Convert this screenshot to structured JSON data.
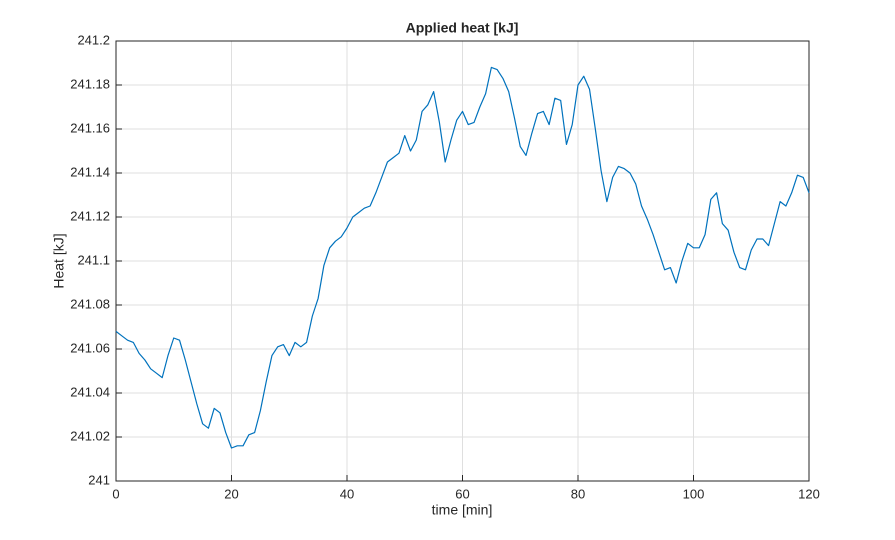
{
  "chart_data": {
    "type": "line",
    "title": "Applied heat [kJ]",
    "xlabel": "time [min]",
    "ylabel": "Heat [kJ]",
    "x": [
      0,
      1,
      2,
      3,
      4,
      5,
      6,
      7,
      8,
      9,
      10,
      11,
      12,
      13,
      14,
      15,
      16,
      17,
      18,
      19,
      20,
      21,
      22,
      23,
      24,
      25,
      26,
      27,
      28,
      29,
      30,
      31,
      32,
      33,
      34,
      35,
      36,
      37,
      38,
      39,
      40,
      41,
      42,
      43,
      44,
      45,
      46,
      47,
      48,
      49,
      50,
      51,
      52,
      53,
      54,
      55,
      56,
      57,
      58,
      59,
      60,
      61,
      62,
      63,
      64,
      65,
      66,
      67,
      68,
      69,
      70,
      71,
      72,
      73,
      74,
      75,
      76,
      77,
      78,
      79,
      80,
      81,
      82,
      83,
      84,
      85,
      86,
      87,
      88,
      89,
      90,
      91,
      92,
      93,
      94,
      95,
      96,
      97,
      98,
      99,
      100,
      101,
      102,
      103,
      104,
      105,
      106,
      107,
      108,
      109,
      110,
      111,
      112,
      113,
      114,
      115,
      116,
      117,
      118,
      119,
      120
    ],
    "values": [
      241.068,
      241.066,
      241.064,
      241.063,
      241.058,
      241.055,
      241.051,
      241.049,
      241.047,
      241.057,
      241.065,
      241.064,
      241.055,
      241.045,
      241.035,
      241.026,
      241.024,
      241.033,
      241.031,
      241.022,
      241.015,
      241.016,
      241.016,
      241.021,
      241.022,
      241.032,
      241.045,
      241.057,
      241.061,
      241.062,
      241.057,
      241.063,
      241.061,
      241.063,
      241.075,
      241.083,
      241.098,
      241.106,
      241.109,
      241.111,
      241.115,
      241.12,
      241.122,
      241.124,
      241.125,
      241.131,
      241.138,
      241.145,
      241.147,
      241.149,
      241.157,
      241.15,
      241.155,
      241.168,
      241.171,
      241.177,
      241.163,
      241.145,
      241.155,
      241.164,
      241.168,
      241.162,
      241.163,
      241.17,
      241.176,
      241.188,
      241.187,
      241.183,
      241.177,
      241.165,
      241.152,
      241.148,
      241.158,
      241.167,
      241.168,
      241.162,
      241.174,
      241.173,
      241.153,
      241.162,
      241.18,
      241.184,
      241.178,
      241.16,
      241.141,
      241.127,
      241.138,
      241.143,
      241.142,
      241.14,
      241.135,
      241.125,
      241.119,
      241.112,
      241.104,
      241.096,
      241.097,
      241.09,
      241.1,
      241.108,
      241.106,
      241.106,
      241.112,
      241.128,
      241.131,
      241.117,
      241.114,
      241.104,
      241.097,
      241.096,
      241.105,
      241.11,
      241.11,
      241.107,
      241.117,
      241.127,
      241.125,
      241.131,
      241.139,
      241.138,
      241.131
    ],
    "color": "#0072bd",
    "xlim": [
      0,
      120
    ],
    "xticks": [
      0,
      20,
      40,
      60,
      80,
      100,
      120
    ],
    "ylim": [
      241,
      241.2
    ],
    "yticks": [
      241,
      241.02,
      241.04,
      241.06,
      241.08,
      241.1,
      241.12,
      241.14,
      241.16,
      241.18,
      241.2
    ],
    "grid": true
  }
}
